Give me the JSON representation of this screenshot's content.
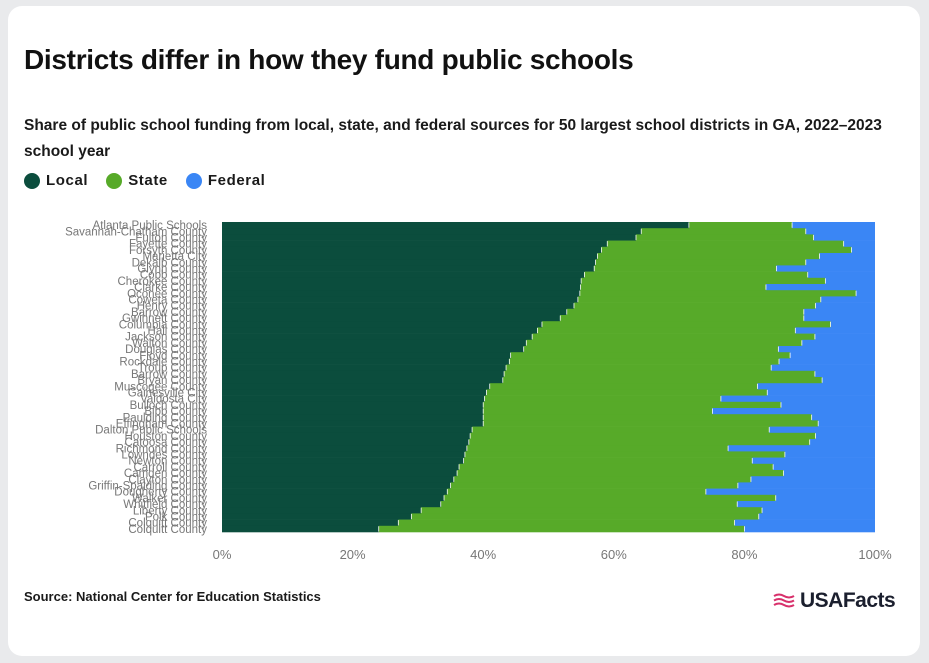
{
  "title": "Districts differ in how they fund public schools",
  "subtitle": "Share of public school funding from local, state, and federal sources for 50 largest school districts in GA, 2022–2023 school year",
  "legend": [
    {
      "label": "Local",
      "color": "#0b4d3d"
    },
    {
      "label": "State",
      "color": "#57aa29"
    },
    {
      "label": "Federal",
      "color": "#3a86f5"
    }
  ],
  "source": "Source: National Center for Education Statistics",
  "logo": {
    "text": "USAFacts",
    "icon": "flag-stripes-icon"
  },
  "chart_data": {
    "type": "bar",
    "orientation": "horizontal",
    "stacked": true,
    "normalized": true,
    "xlim": [
      0,
      100
    ],
    "xticks": [
      "0%",
      "20%",
      "40%",
      "60%",
      "80%",
      "100%"
    ],
    "categories": [
      "Atlanta Public Schools",
      "Savannah-Chatham County",
      "Fulton County",
      "Fayette County",
      "Forsyth County",
      "Marietta City",
      "Dekalb County",
      "Glynn County",
      "Cobb County",
      "Cherokee County",
      "Clarke County",
      "Oconee County",
      "Coweta County",
      "Henry County",
      "Barrow County",
      "Gwinnett County",
      "Columbia County",
      "Hall County",
      "Jackson County",
      "Walton County",
      "Douglas County",
      "Floyd County",
      "Rockdale County",
      "Troup County",
      "Barrow County",
      "Bryan County",
      "Muscogee County",
      "Gainesville City",
      "Valdosta City",
      "Bulloch County",
      "Bibb County",
      "Paulding County",
      "Effingham County",
      "Dalton Public Schools",
      "Houston County",
      "Catoosa County",
      "Richmond County",
      "Lowndes County",
      "Newton County",
      "Carroll County",
      "Camden County",
      "Clayton County",
      "Griffin-Spalding County",
      "Dougherty County",
      "Walker County",
      "Whitfield County",
      "Liberty County",
      "Polk County",
      "Colquitt County",
      "Colquitt County"
    ],
    "series": [
      {
        "name": "Local",
        "color": "#0b4d3d",
        "values": [
          71.5,
          64.2,
          63.4,
          59.0,
          58.1,
          57.5,
          57.2,
          57.0,
          55.5,
          55.0,
          54.9,
          54.8,
          54.5,
          53.9,
          52.8,
          51.8,
          49.0,
          48.3,
          47.5,
          46.6,
          46.2,
          44.2,
          44.0,
          43.5,
          43.2,
          43.0,
          41.0,
          40.5,
          40.2,
          40.0,
          40.0,
          40.0,
          40.0,
          38.3,
          38.0,
          37.8,
          37.5,
          37.2,
          37.0,
          36.3,
          36.0,
          35.5,
          35.0,
          34.5,
          34.0,
          33.5,
          30.5,
          29.0,
          27.0,
          24.0
        ]
      },
      {
        "name": "State",
        "color": "#57aa29",
        "values": [
          15.8,
          25.2,
          27.2,
          36.2,
          38.3,
          34.0,
          32.2,
          27.9,
          34.2,
          37.4,
          28.4,
          42.3,
          37.2,
          37.0,
          36.3,
          37.3,
          44.2,
          39.5,
          43.3,
          42.2,
          39.0,
          42.8,
          41.3,
          40.6,
          47.6,
          48.9,
          41.0,
          43.0,
          36.2,
          45.6,
          35.1,
          50.3,
          51.3,
          45.5,
          52.9,
          52.2,
          40.0,
          49.0,
          44.2,
          48.1,
          50.0,
          45.5,
          44.0,
          39.6,
          50.8,
          45.4,
          52.2,
          53.2,
          51.5,
          56.0
        ]
      },
      {
        "name": "Federal",
        "color": "#3a86f5",
        "values": [
          12.7,
          10.6,
          9.4,
          4.8,
          3.6,
          8.5,
          10.6,
          15.1,
          10.3,
          7.6,
          16.7,
          2.9,
          8.3,
          9.1,
          10.9,
          10.9,
          6.8,
          12.2,
          9.2,
          11.2,
          14.8,
          13.0,
          14.7,
          15.9,
          9.2,
          8.1,
          18.0,
          16.5,
          23.6,
          14.4,
          24.9,
          9.7,
          8.7,
          16.2,
          9.1,
          10.0,
          22.5,
          13.8,
          18.8,
          15.6,
          14.0,
          19.0,
          21.0,
          25.9,
          15.2,
          21.1,
          17.3,
          17.8,
          21.5,
          20.0
        ]
      }
    ]
  }
}
